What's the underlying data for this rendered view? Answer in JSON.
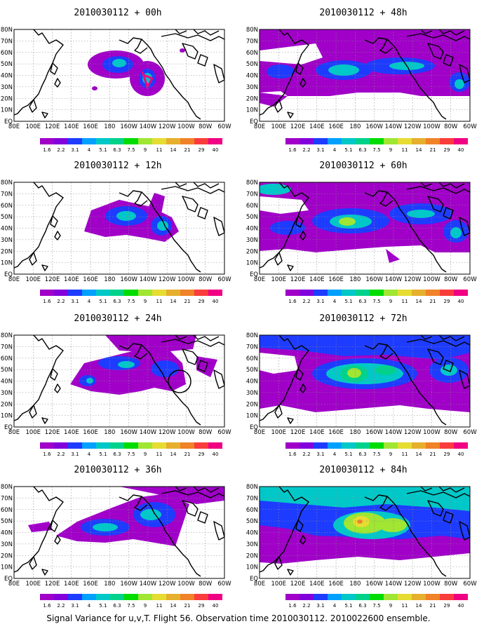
{
  "colors": {
    "scale": [
      "#a000c8",
      "#8200dc",
      "#1e3cff",
      "#00a0ff",
      "#00c8c8",
      "#00d28c",
      "#00dc00",
      "#a0e632",
      "#e6dc32",
      "#e6af2d",
      "#f08228",
      "#fa3c3c",
      "#f00082"
    ]
  },
  "colorbar": {
    "labels": [
      "1.6",
      "2.2",
      "3.1",
      "4",
      "5.1",
      "6.3",
      "7.5",
      "9",
      "11",
      "14",
      "21",
      "29",
      "40"
    ]
  },
  "axes": {
    "x_ticks": [
      "80E",
      "100E",
      "120E",
      "140E",
      "160E",
      "180",
      "160W",
      "140W",
      "120W",
      "100W",
      "80W",
      "60W"
    ],
    "y_ticks": [
      "EQ",
      "10N",
      "20N",
      "30N",
      "40N",
      "50N",
      "60N",
      "70N",
      "80N"
    ]
  },
  "panels": [
    {
      "title": "2010030112 + 00h"
    },
    {
      "title": "2010030112 + 48h"
    },
    {
      "title": "2010030112 + 12h"
    },
    {
      "title": "2010030112 + 60h"
    },
    {
      "title": "2010030112 + 24h"
    },
    {
      "title": "2010030112 + 72h"
    },
    {
      "title": "2010030112 + 36h"
    },
    {
      "title": "2010030112 + 84h"
    }
  ],
  "caption": "Signal Variance for u,v,T. Flight 56. Observation time 2010030112. 2010022600 ensemble."
}
